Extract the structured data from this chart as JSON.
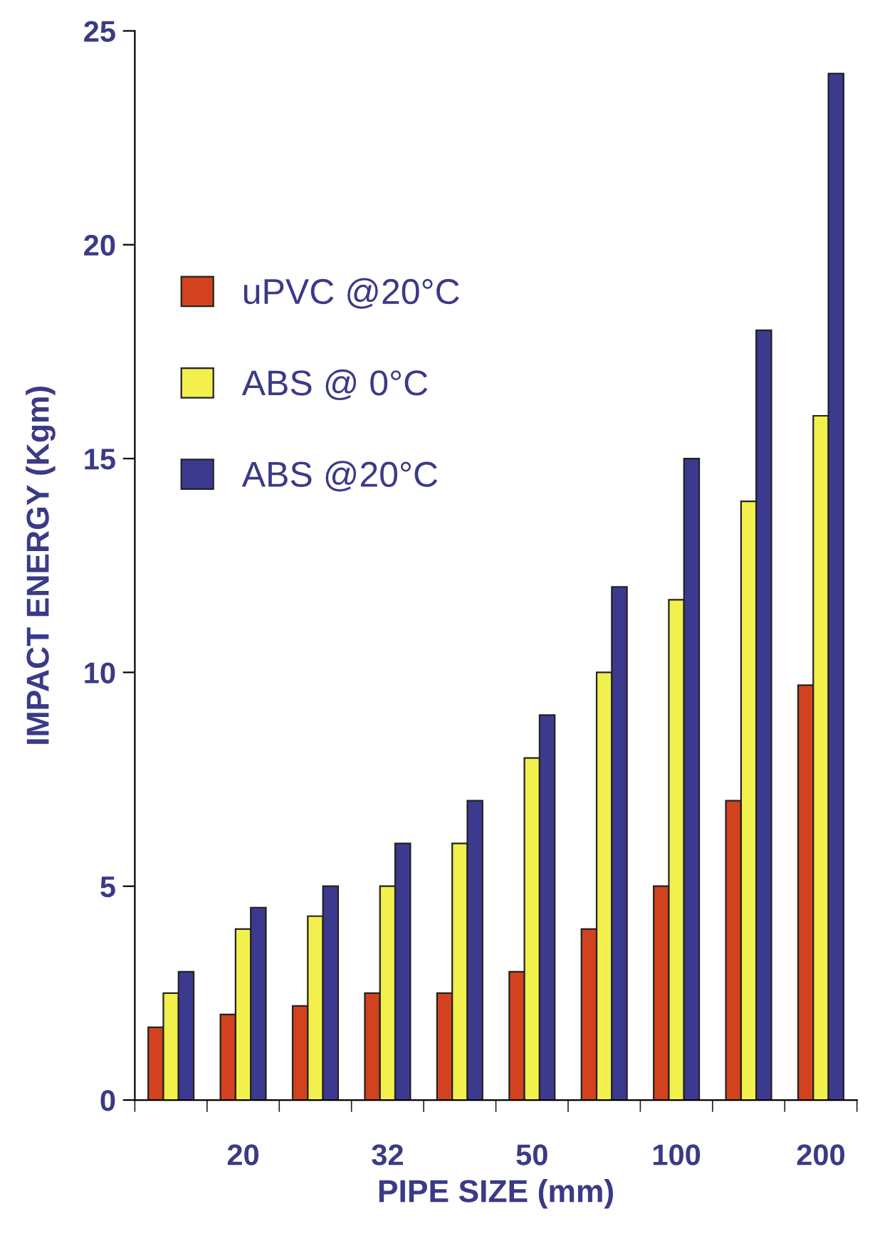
{
  "chart_data": {
    "type": "bar",
    "xlabel": "PIPE SIZE (mm)",
    "ylabel": "IMPACT ENERGY (Kgm)",
    "categories": [
      null,
      "20",
      null,
      "32",
      null,
      "50",
      null,
      "100",
      null,
      "200"
    ],
    "series": [
      {
        "name": "uPVC @20°C",
        "color": "#d2421e",
        "values": [
          1.7,
          2,
          2.2,
          2.5,
          2.5,
          3,
          4,
          5,
          7,
          9.7
        ]
      },
      {
        "name": "ABS @ 0°C",
        "color": "#f2f04c",
        "values": [
          2.5,
          4,
          4.3,
          5,
          6,
          8,
          10,
          11.7,
          14,
          16
        ]
      },
      {
        "name": "ABS @20°C",
        "color": "#3c3a8e",
        "values": [
          3,
          4.5,
          5,
          6,
          7,
          9,
          12,
          15,
          18,
          24
        ]
      }
    ],
    "ylim": [
      0,
      25
    ],
    "yticks": [
      0,
      5,
      10,
      15,
      20,
      25
    ],
    "grid": false,
    "legend": "top left"
  }
}
